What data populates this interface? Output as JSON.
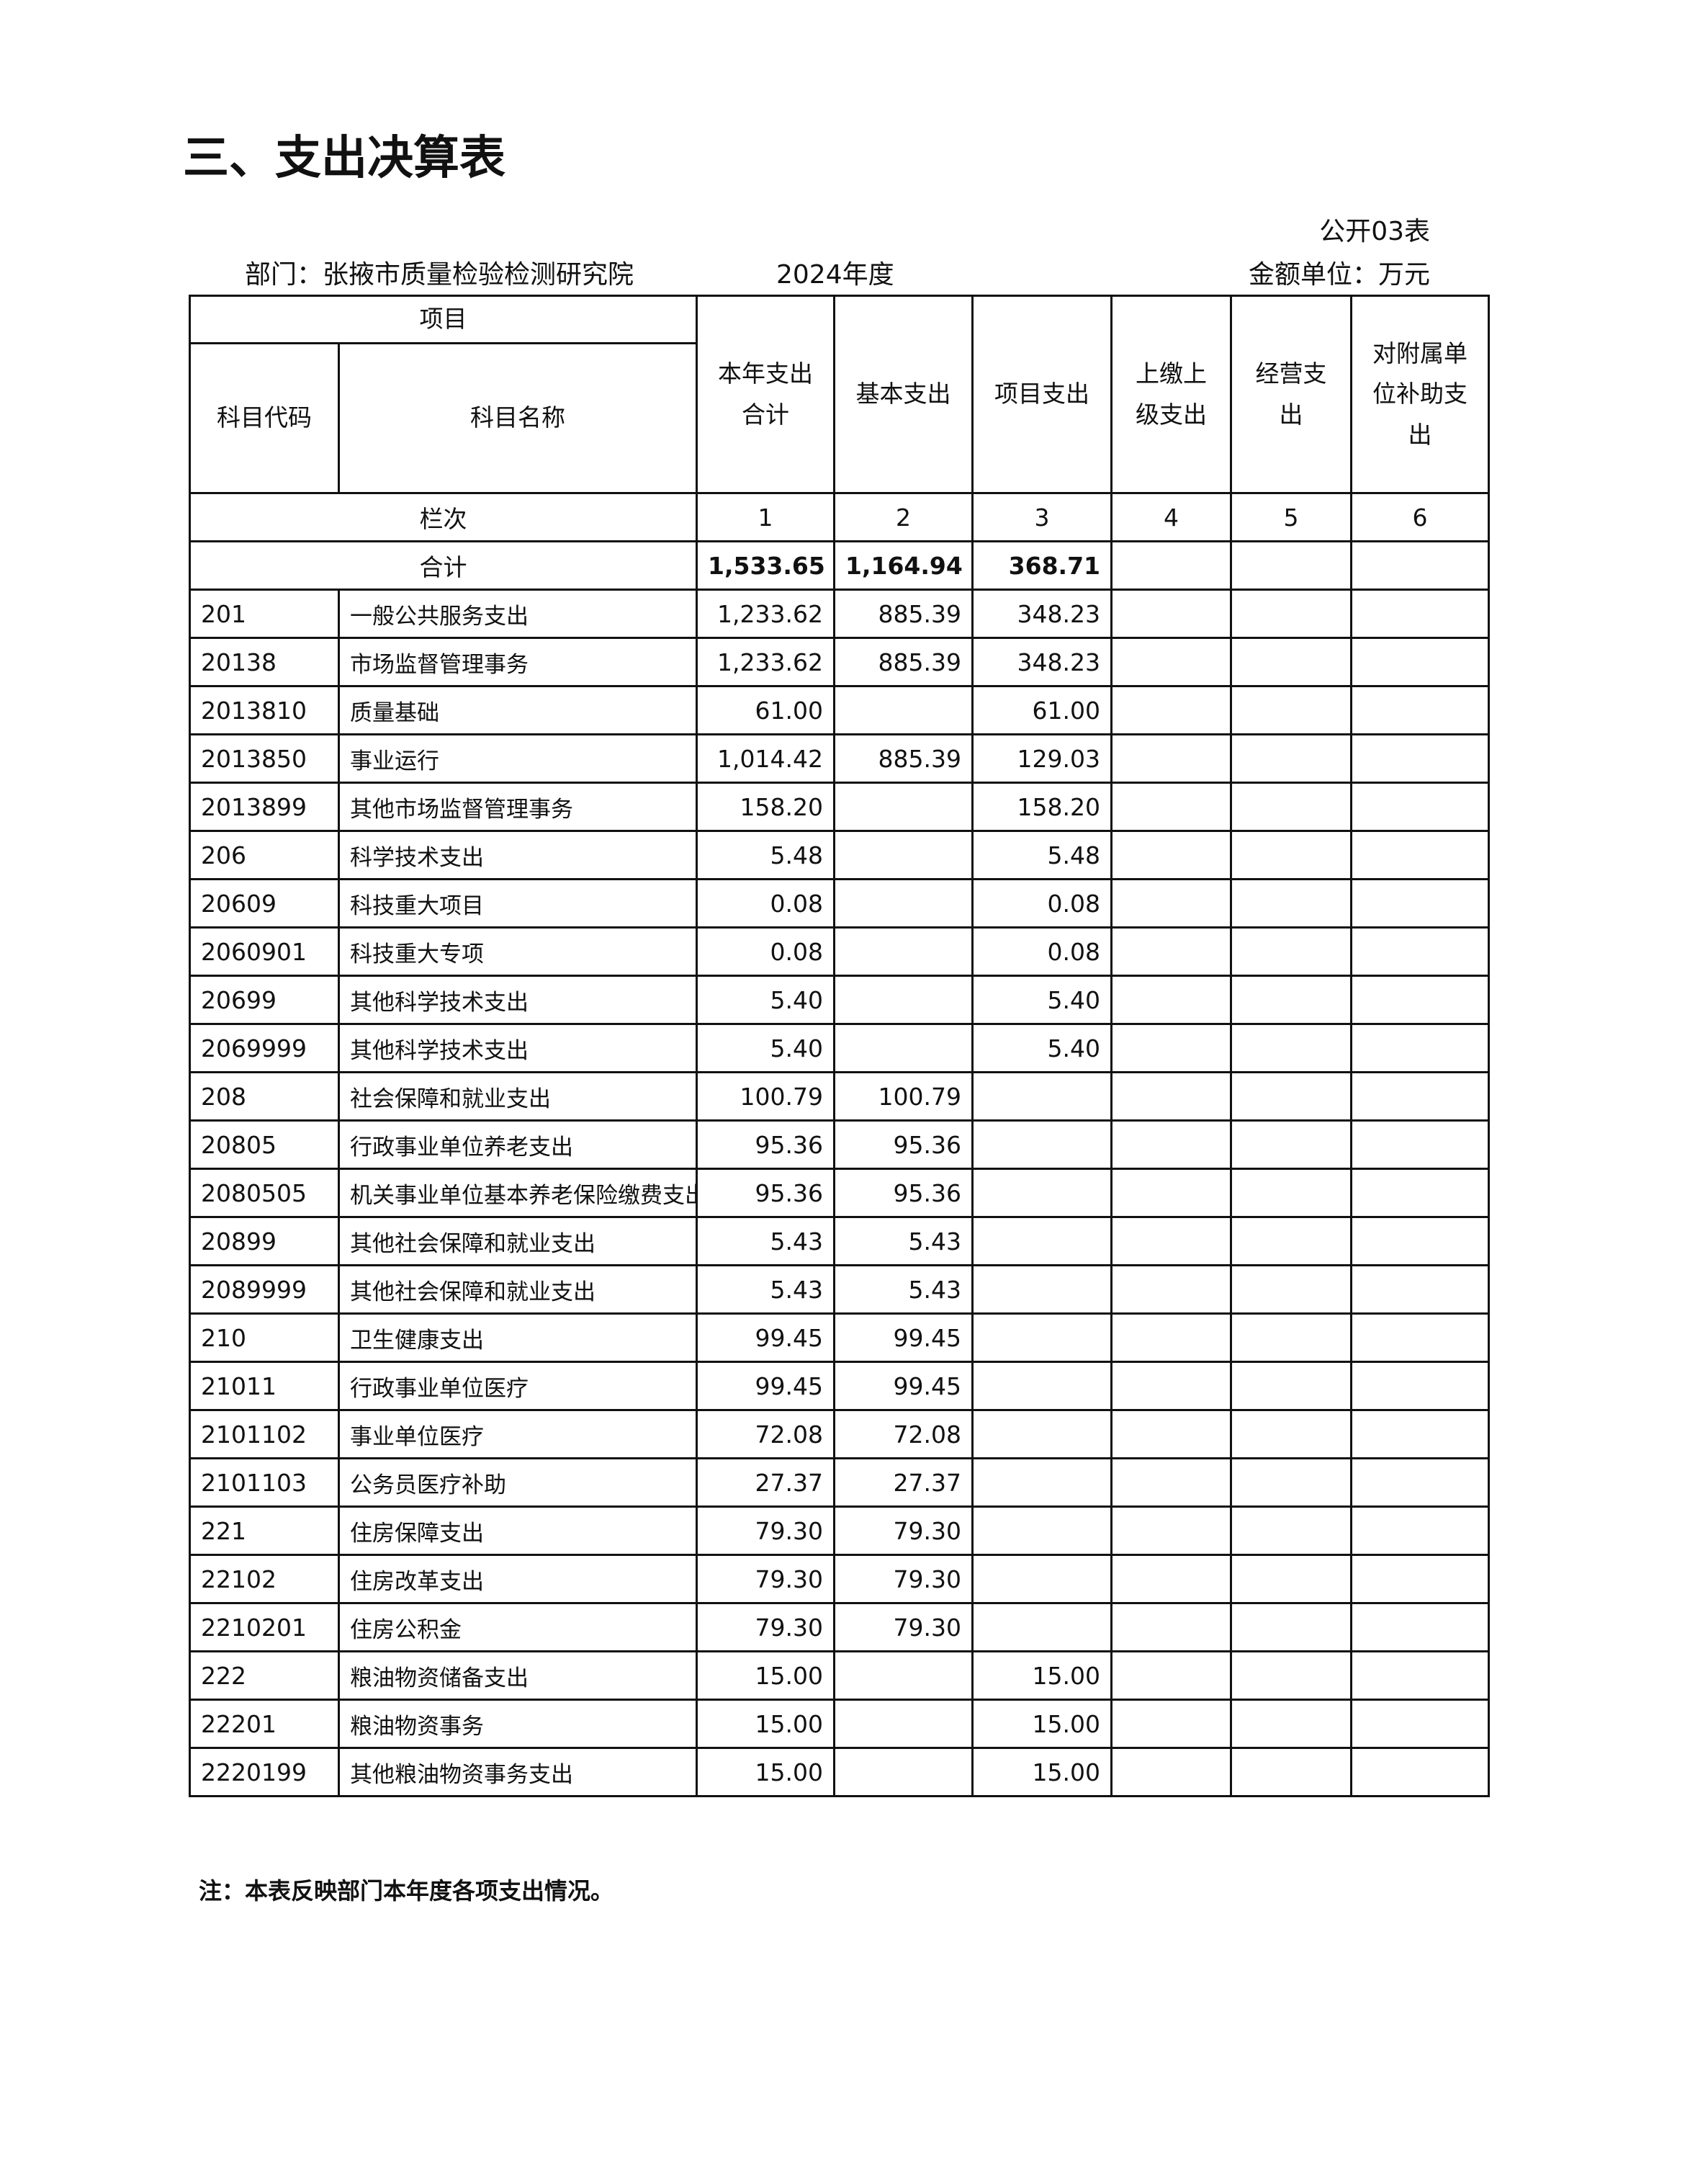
{
  "title": "三、支出决算表",
  "form_no": "公开03表",
  "department": "部门：张掖市质量检验检测研究院",
  "year": "2024年度",
  "unit": "金额单位：万元",
  "table": {
    "header": {
      "item": "项目",
      "code": "科目代码",
      "name": "科目名称",
      "columns": [
        "本年支出合计",
        "基本支出",
        "项目支出",
        "上缴上级支出",
        "经营支出",
        "对附属单位补助支出"
      ]
    },
    "column_no_label": "栏次",
    "column_numbers": [
      1,
      2,
      3,
      4,
      5,
      6
    ],
    "total": {
      "label": "合计",
      "values": [
        "1,533.65",
        "1,164.94",
        "368.71",
        null,
        null,
        null
      ]
    },
    "rows": [
      [
        "201",
        "一般公共服务支出",
        "1,233.62",
        "885.39",
        "348.23",
        null,
        null,
        null
      ],
      [
        "20138",
        "市场监督管理事务",
        "1,233.62",
        "885.39",
        "348.23",
        null,
        null,
        null
      ],
      [
        "2013810",
        "质量基础",
        "61.00",
        null,
        "61.00",
        null,
        null,
        null
      ],
      [
        "2013850",
        "事业运行",
        "1,014.42",
        "885.39",
        "129.03",
        null,
        null,
        null
      ],
      [
        "2013899",
        "其他市场监督管理事务",
        "158.20",
        null,
        "158.20",
        null,
        null,
        null
      ],
      [
        "206",
        "科学技术支出",
        "5.48",
        null,
        "5.48",
        null,
        null,
        null
      ],
      [
        "20609",
        "科技重大项目",
        "0.08",
        null,
        "0.08",
        null,
        null,
        null
      ],
      [
        "2060901",
        "科技重大专项",
        "0.08",
        null,
        "0.08",
        null,
        null,
        null
      ],
      [
        "20699",
        "其他科学技术支出",
        "5.40",
        null,
        "5.40",
        null,
        null,
        null
      ],
      [
        "2069999",
        "其他科学技术支出",
        "5.40",
        null,
        "5.40",
        null,
        null,
        null
      ],
      [
        "208",
        "社会保障和就业支出",
        "100.79",
        "100.79",
        null,
        null,
        null,
        null
      ],
      [
        "20805",
        "行政事业单位养老支出",
        "95.36",
        "95.36",
        null,
        null,
        null,
        null
      ],
      [
        "2080505",
        "机关事业单位基本养老保险缴费支出",
        "95.36",
        "95.36",
        null,
        null,
        null,
        null
      ],
      [
        "20899",
        "其他社会保障和就业支出",
        "5.43",
        "5.43",
        null,
        null,
        null,
        null
      ],
      [
        "2089999",
        "其他社会保障和就业支出",
        "5.43",
        "5.43",
        null,
        null,
        null,
        null
      ],
      [
        "210",
        "卫生健康支出",
        "99.45",
        "99.45",
        null,
        null,
        null,
        null
      ],
      [
        "21011",
        "行政事业单位医疗",
        "99.45",
        "99.45",
        null,
        null,
        null,
        null
      ],
      [
        "2101102",
        "事业单位医疗",
        "72.08",
        "72.08",
        null,
        null,
        null,
        null
      ],
      [
        "2101103",
        "公务员医疗补助",
        "27.37",
        "27.37",
        null,
        null,
        null,
        null
      ],
      [
        "221",
        "住房保障支出",
        "79.30",
        "79.30",
        null,
        null,
        null,
        null
      ],
      [
        "22102",
        "住房改革支出",
        "79.30",
        "79.30",
        null,
        null,
        null,
        null
      ],
      [
        "2210201",
        "住房公积金",
        "79.30",
        "79.30",
        null,
        null,
        null,
        null
      ],
      [
        "222",
        "粮油物资储备支出",
        "15.00",
        null,
        "15.00",
        null,
        null,
        null
      ],
      [
        "22201",
        "粮油物资事务",
        "15.00",
        null,
        "15.00",
        null,
        null,
        null
      ],
      [
        "2220199",
        "其他粮油物资事务支出",
        "15.00",
        null,
        "15.00",
        null,
        null,
        null
      ]
    ]
  },
  "note": "注：本表反映部门本年度各项支出情况。"
}
